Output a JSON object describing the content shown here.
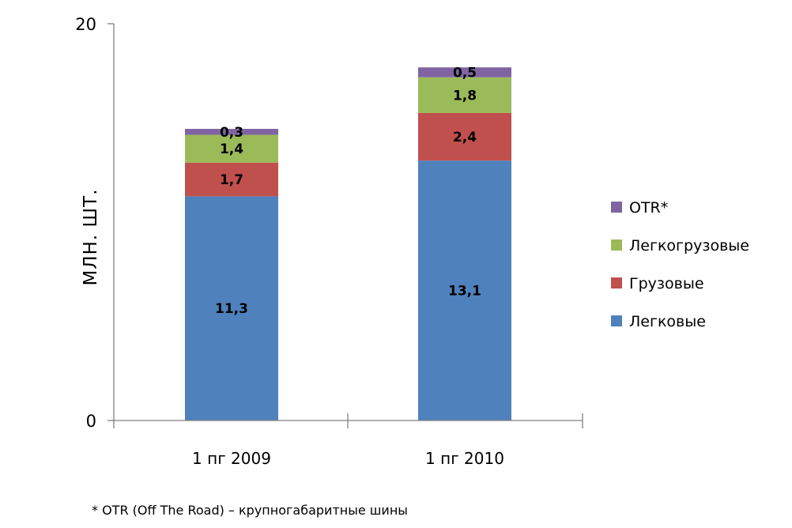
{
  "chart_data": {
    "type": "bar",
    "stacked": true,
    "title": "",
    "xlabel": "",
    "ylabel": "МЛН. ШТ.",
    "ylim": [
      0,
      20
    ],
    "yticks": [
      "0",
      "20"
    ],
    "categories": [
      "1 пг 2009",
      "1 пг 2010"
    ],
    "series": [
      {
        "name": "Легковые",
        "color": "#4F81BD",
        "values": [
          11.3,
          13.1
        ],
        "labels": [
          "11,3",
          "13,1"
        ]
      },
      {
        "name": "Грузовые",
        "color": "#C0504D",
        "values": [
          1.7,
          2.4
        ],
        "labels": [
          "1,7",
          "2,4"
        ]
      },
      {
        "name": "Легкогрузовые",
        "color": "#9BBB59",
        "values": [
          1.4,
          1.8
        ],
        "labels": [
          "1,4",
          "1,8"
        ]
      },
      {
        "name": "OTR*",
        "color": "#8064A2",
        "values": [
          0.3,
          0.5
        ],
        "labels": [
          "0,3",
          "0,5"
        ]
      }
    ],
    "legend_position": "right",
    "grid": false,
    "footnote": "* OTR (Off The Road) – крупногабаритные шины"
  }
}
